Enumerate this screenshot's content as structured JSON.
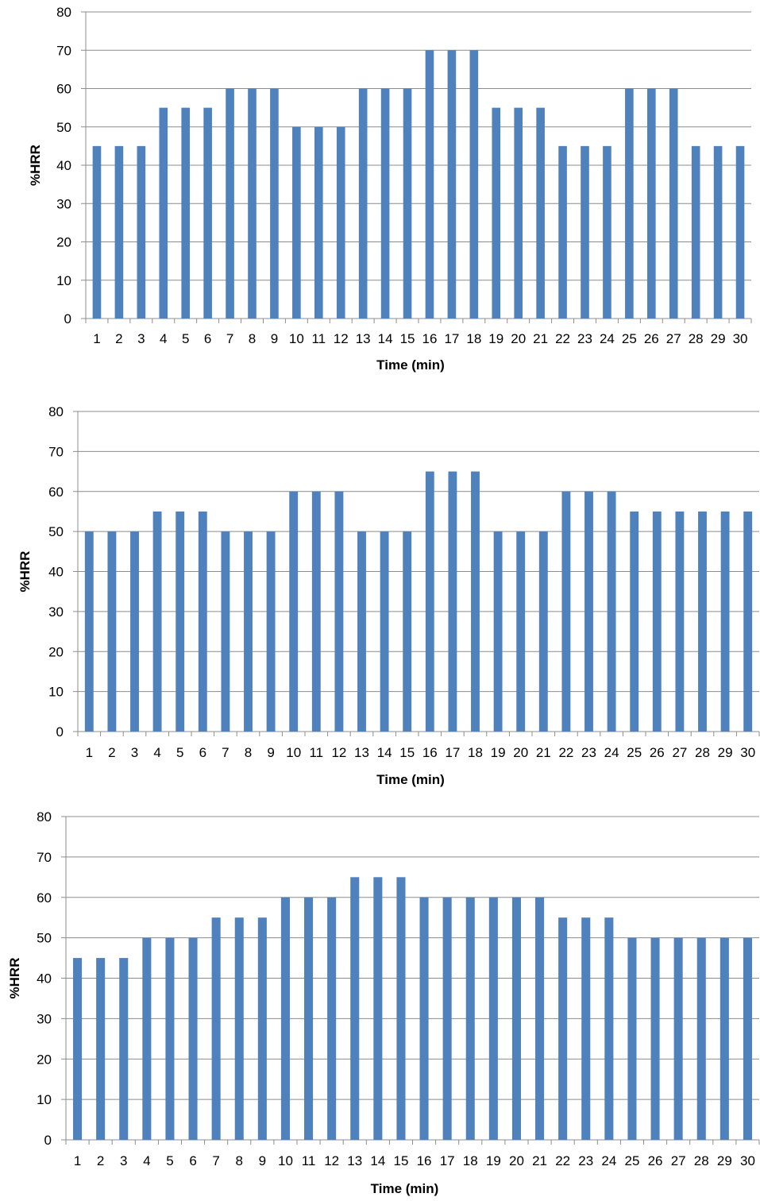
{
  "chart_data": [
    {
      "type": "bar",
      "xlabel": "Time (min)",
      "ylabel": "%HRR",
      "ylim": [
        0,
        80
      ],
      "yticks": [
        0,
        10,
        20,
        30,
        40,
        50,
        60,
        70,
        80
      ],
      "categories": [
        "1",
        "2",
        "3",
        "4",
        "5",
        "6",
        "7",
        "8",
        "9",
        "10",
        "11",
        "12",
        "13",
        "14",
        "15",
        "16",
        "17",
        "18",
        "19",
        "20",
        "21",
        "22",
        "23",
        "24",
        "25",
        "26",
        "27",
        "28",
        "29",
        "30"
      ],
      "values": [
        45,
        45,
        45,
        55,
        55,
        55,
        60,
        60,
        60,
        50,
        50,
        50,
        60,
        60,
        60,
        70,
        70,
        70,
        55,
        55,
        55,
        45,
        45,
        45,
        60,
        60,
        60,
        45,
        45,
        45
      ],
      "grid": "horizontal",
      "color": "#4F81BD"
    },
    {
      "type": "bar",
      "xlabel": "Time (min)",
      "ylabel": "%HRR",
      "ylim": [
        0,
        80
      ],
      "yticks": [
        0,
        10,
        20,
        30,
        40,
        50,
        60,
        70,
        80
      ],
      "categories": [
        "1",
        "2",
        "3",
        "4",
        "5",
        "6",
        "7",
        "8",
        "9",
        "10",
        "11",
        "12",
        "13",
        "14",
        "15",
        "16",
        "17",
        "18",
        "19",
        "20",
        "21",
        "22",
        "23",
        "24",
        "25",
        "26",
        "27",
        "28",
        "29",
        "30"
      ],
      "values": [
        50,
        50,
        50,
        55,
        55,
        55,
        50,
        50,
        50,
        60,
        60,
        60,
        50,
        50,
        50,
        65,
        65,
        65,
        50,
        50,
        50,
        60,
        60,
        60,
        55,
        55,
        55,
        55,
        55,
        55
      ],
      "grid": "horizontal",
      "color": "#4F81BD"
    },
    {
      "type": "bar",
      "xlabel": "Time (min)",
      "ylabel": "%HRR",
      "ylim": [
        0,
        80
      ],
      "yticks": [
        0,
        10,
        20,
        30,
        40,
        50,
        60,
        70,
        80
      ],
      "categories": [
        "1",
        "2",
        "3",
        "4",
        "5",
        "6",
        "7",
        "8",
        "9",
        "10",
        "11",
        "12",
        "13",
        "14",
        "15",
        "16",
        "17",
        "18",
        "19",
        "20",
        "21",
        "22",
        "23",
        "24",
        "25",
        "26",
        "27",
        "28",
        "29",
        "30"
      ],
      "values": [
        45,
        45,
        45,
        50,
        50,
        50,
        55,
        55,
        55,
        60,
        60,
        60,
        65,
        65,
        65,
        60,
        60,
        60,
        60,
        60,
        60,
        55,
        55,
        55,
        50,
        50,
        50,
        50,
        50,
        50
      ],
      "grid": "horizontal",
      "color": "#4F81BD"
    }
  ]
}
